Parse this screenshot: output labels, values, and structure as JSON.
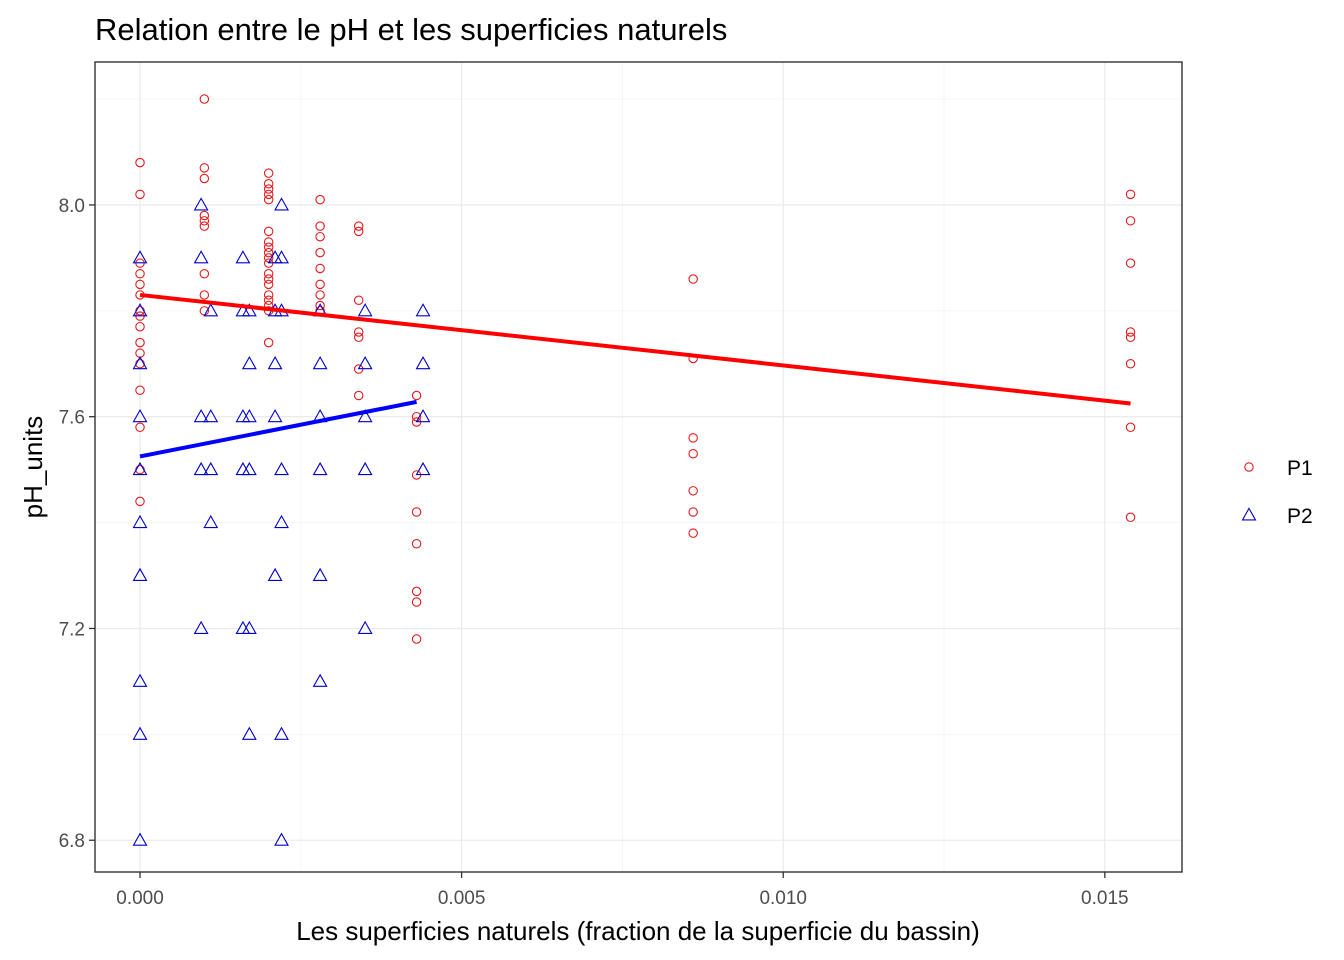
{
  "chart_data": {
    "type": "scatter",
    "title": "Relation entre le pH et les superficies naturels",
    "xlabel": "Les superficies naturels (fraction de la superficie du bassin)",
    "ylabel": "pH_units",
    "xlim": [
      -0.0007,
      0.0162
    ],
    "ylim": [
      6.74,
      8.27
    ],
    "x_ticks": [
      0.0,
      0.005,
      0.01,
      0.015
    ],
    "x_tick_labels": [
      "0.000",
      "0.005",
      "0.010",
      "0.015"
    ],
    "y_ticks": [
      6.8,
      7.2,
      7.6,
      8.0
    ],
    "y_tick_labels": [
      "6.8",
      "7.2",
      "7.6",
      "8.0"
    ],
    "grid": true,
    "legend_position": "right",
    "series": [
      {
        "name": "P1",
        "shape": "circle",
        "color": "#e41a1c",
        "points": [
          [
            0.0,
            8.08
          ],
          [
            0.0,
            8.02
          ],
          [
            0.0,
            7.89
          ],
          [
            0.0,
            7.87
          ],
          [
            0.0,
            7.85
          ],
          [
            0.0,
            7.83
          ],
          [
            0.0,
            7.8
          ],
          [
            0.0,
            7.79
          ],
          [
            0.0,
            7.77
          ],
          [
            0.0,
            7.74
          ],
          [
            0.0,
            7.72
          ],
          [
            0.0,
            7.7
          ],
          [
            0.0,
            7.65
          ],
          [
            0.0,
            7.58
          ],
          [
            0.0,
            7.5
          ],
          [
            0.0,
            7.44
          ],
          [
            0.001,
            8.2
          ],
          [
            0.001,
            8.07
          ],
          [
            0.001,
            8.05
          ],
          [
            0.001,
            7.98
          ],
          [
            0.001,
            7.97
          ],
          [
            0.001,
            7.96
          ],
          [
            0.001,
            7.87
          ],
          [
            0.001,
            7.83
          ],
          [
            0.001,
            7.8
          ],
          [
            0.002,
            8.06
          ],
          [
            0.002,
            8.04
          ],
          [
            0.002,
            8.03
          ],
          [
            0.002,
            8.02
          ],
          [
            0.002,
            8.01
          ],
          [
            0.002,
            7.95
          ],
          [
            0.002,
            7.93
          ],
          [
            0.002,
            7.92
          ],
          [
            0.002,
            7.91
          ],
          [
            0.002,
            7.9
          ],
          [
            0.002,
            7.89
          ],
          [
            0.002,
            7.87
          ],
          [
            0.002,
            7.86
          ],
          [
            0.002,
            7.85
          ],
          [
            0.002,
            7.83
          ],
          [
            0.002,
            7.82
          ],
          [
            0.002,
            7.81
          ],
          [
            0.002,
            7.8
          ],
          [
            0.002,
            7.74
          ],
          [
            0.0028,
            8.01
          ],
          [
            0.0028,
            7.96
          ],
          [
            0.0028,
            7.94
          ],
          [
            0.0028,
            7.91
          ],
          [
            0.0028,
            7.88
          ],
          [
            0.0028,
            7.85
          ],
          [
            0.0028,
            7.83
          ],
          [
            0.0028,
            7.81
          ],
          [
            0.0028,
            7.8
          ],
          [
            0.0034,
            7.96
          ],
          [
            0.0034,
            7.95
          ],
          [
            0.0034,
            7.82
          ],
          [
            0.0034,
            7.76
          ],
          [
            0.0034,
            7.75
          ],
          [
            0.0034,
            7.69
          ],
          [
            0.0034,
            7.64
          ],
          [
            0.0043,
            7.64
          ],
          [
            0.0043,
            7.6
          ],
          [
            0.0043,
            7.59
          ],
          [
            0.0043,
            7.49
          ],
          [
            0.0043,
            7.42
          ],
          [
            0.0043,
            7.36
          ],
          [
            0.0043,
            7.27
          ],
          [
            0.0043,
            7.25
          ],
          [
            0.0043,
            7.18
          ],
          [
            0.0086,
            7.86
          ],
          [
            0.0086,
            7.71
          ],
          [
            0.0086,
            7.56
          ],
          [
            0.0086,
            7.53
          ],
          [
            0.0086,
            7.46
          ],
          [
            0.0086,
            7.42
          ],
          [
            0.0086,
            7.38
          ],
          [
            0.0154,
            8.02
          ],
          [
            0.0154,
            7.97
          ],
          [
            0.0154,
            7.89
          ],
          [
            0.0154,
            7.76
          ],
          [
            0.0154,
            7.75
          ],
          [
            0.0154,
            7.7
          ],
          [
            0.0154,
            7.58
          ],
          [
            0.0154,
            7.41
          ]
        ],
        "trend_line": {
          "x": [
            0.0,
            0.0154
          ],
          "y": [
            7.83,
            7.625
          ],
          "color": "#ff0000"
        }
      },
      {
        "name": "P2",
        "shape": "triangle",
        "color": "#0000cd",
        "points": [
          [
            0.0,
            7.9
          ],
          [
            0.0,
            7.8
          ],
          [
            0.0,
            7.7
          ],
          [
            0.0,
            7.6
          ],
          [
            0.0,
            7.5
          ],
          [
            0.0,
            7.4
          ],
          [
            0.0,
            7.3
          ],
          [
            0.0,
            7.1
          ],
          [
            0.0,
            7.0
          ],
          [
            0.0,
            6.8
          ],
          [
            0.00095,
            8.0
          ],
          [
            0.00095,
            7.9
          ],
          [
            0.00095,
            7.6
          ],
          [
            0.00095,
            7.5
          ],
          [
            0.00095,
            7.2
          ],
          [
            0.0011,
            7.8
          ],
          [
            0.0011,
            7.6
          ],
          [
            0.0011,
            7.5
          ],
          [
            0.0011,
            7.4
          ],
          [
            0.0016,
            7.9
          ],
          [
            0.0016,
            7.8
          ],
          [
            0.0016,
            7.6
          ],
          [
            0.0016,
            7.5
          ],
          [
            0.0016,
            7.2
          ],
          [
            0.0017,
            7.8
          ],
          [
            0.0017,
            7.7
          ],
          [
            0.0017,
            7.6
          ],
          [
            0.0017,
            7.5
          ],
          [
            0.0017,
            7.2
          ],
          [
            0.0017,
            7.0
          ],
          [
            0.0021,
            7.9
          ],
          [
            0.0021,
            7.8
          ],
          [
            0.0021,
            7.7
          ],
          [
            0.0021,
            7.6
          ],
          [
            0.0021,
            7.3
          ],
          [
            0.0022,
            8.0
          ],
          [
            0.0022,
            7.9
          ],
          [
            0.0022,
            7.8
          ],
          [
            0.0022,
            7.5
          ],
          [
            0.0022,
            7.4
          ],
          [
            0.0022,
            7.0
          ],
          [
            0.0022,
            6.8
          ],
          [
            0.0028,
            7.8
          ],
          [
            0.0028,
            7.7
          ],
          [
            0.0028,
            7.6
          ],
          [
            0.0028,
            7.5
          ],
          [
            0.0028,
            7.3
          ],
          [
            0.0028,
            7.1
          ],
          [
            0.0035,
            7.8
          ],
          [
            0.0035,
            7.7
          ],
          [
            0.0035,
            7.6
          ],
          [
            0.0035,
            7.5
          ],
          [
            0.0035,
            7.2
          ],
          [
            0.0044,
            7.8
          ],
          [
            0.0044,
            7.7
          ],
          [
            0.0044,
            7.6
          ],
          [
            0.0044,
            7.5
          ]
        ],
        "trend_line": {
          "x": [
            0.0,
            0.0043
          ],
          "y": [
            7.525,
            7.628
          ],
          "color": "#0000ff"
        }
      }
    ]
  }
}
